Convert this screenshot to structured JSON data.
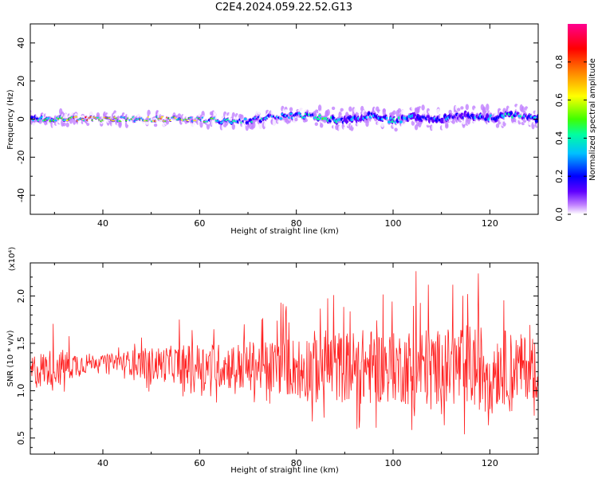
{
  "title": "C2E4.2024.059.22.52.G13",
  "colors": {
    "snr_line": "#ff2020",
    "colormap": [
      "#ffffff",
      "#c080ff",
      "#6000ff",
      "#0000ff",
      "#00c0ff",
      "#00ffa0",
      "#40ff00",
      "#ffff00",
      "#ff8000",
      "#ff0000",
      "#ff0090"
    ]
  },
  "chart_data": [
    {
      "type": "heatmap",
      "title": "C2E4.2024.059.22.52.G13",
      "xlabel": "Height of straight line (km)",
      "ylabel": "Frequency (Hz)",
      "xlim": [
        25,
        130
      ],
      "ylim": [
        -50,
        50
      ],
      "xticks": [
        40,
        60,
        80,
        100,
        120
      ],
      "yticks": [
        -40,
        -20,
        0,
        20,
        40
      ],
      "colorbar": {
        "label": "Normalized spectral amplitude",
        "range": [
          0,
          1
        ],
        "ticks": [
          "0.0",
          "0.2",
          "0.4",
          "0.6",
          "0.8"
        ]
      },
      "ridge": {
        "x": [
          25,
          30,
          35,
          40,
          45,
          50,
          55,
          60,
          65,
          70,
          75,
          80,
          85,
          90,
          95,
          100,
          105,
          110,
          115,
          120,
          125,
          130
        ],
        "center_freq": [
          0,
          0,
          0,
          0,
          0,
          0,
          0,
          0,
          -1,
          -1,
          1,
          2,
          1,
          -1,
          2,
          -1,
          1,
          0,
          2,
          1,
          2,
          0
        ],
        "half_width": [
          3,
          3,
          2,
          2,
          2,
          2,
          2,
          2,
          3,
          3,
          3,
          3,
          4,
          5,
          4,
          4,
          5,
          4,
          5,
          5,
          4,
          4
        ],
        "peak_amplitude": [
          0.55,
          0.65,
          0.95,
          0.9,
          0.7,
          0.95,
          0.85,
          0.75,
          0.6,
          0.55,
          0.5,
          0.55,
          0.65,
          0.45,
          0.5,
          0.6,
          0.45,
          0.45,
          0.4,
          0.45,
          0.55,
          0.45
        ]
      }
    },
    {
      "type": "line",
      "xlabel": "Height of straight line (km)",
      "ylabel": "SNR (10 * v/v)",
      "y_multiplier": "(x10⁴)",
      "xlim": [
        25,
        130
      ],
      "ylim": [
        0.33,
        2.35
      ],
      "xticks": [
        40,
        60,
        80,
        100,
        120
      ],
      "yticks": [
        "0.5",
        "1.0",
        "1.5",
        "2.0"
      ],
      "series": [
        {
          "envelope": {
            "x": [
              25,
              30,
              35,
              40,
              45,
              50,
              55,
              60,
              65,
              70,
              75,
              80,
              85,
              90,
              95,
              100,
              105,
              110,
              115,
              120,
              125,
              130
            ],
            "center": [
              1.2,
              1.25,
              1.28,
              1.32,
              1.3,
              1.28,
              1.28,
              1.27,
              1.26,
              1.25,
              1.25,
              1.25,
              1.25,
              1.25,
              1.25,
              1.25,
              1.25,
              1.25,
              1.25,
              1.25,
              1.25,
              1.25
            ],
            "min": [
              0.9,
              0.95,
              1.0,
              1.2,
              1.05,
              0.98,
              0.95,
              0.9,
              0.85,
              0.75,
              0.75,
              0.75,
              0.6,
              0.55,
              0.45,
              0.55,
              0.55,
              0.55,
              0.45,
              0.5,
              0.55,
              0.6
            ],
            "max": [
              1.65,
              1.75,
              1.55,
              1.4,
              1.55,
              1.7,
              1.75,
              1.85,
              1.8,
              1.85,
              1.9,
              2.05,
              2.25,
              2.05,
              2.1,
              2.0,
              2.3,
              2.1,
              2.3,
              2.3,
              2.0,
              1.9
            ]
          }
        }
      ]
    }
  ]
}
